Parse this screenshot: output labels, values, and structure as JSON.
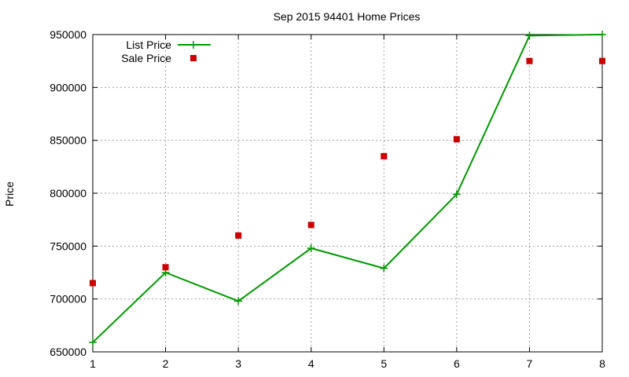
{
  "chart_data": {
    "type": "line",
    "title": "Sep 2015 94401 Home Prices",
    "xlabel": "",
    "ylabel": "Price",
    "xlim": [
      1,
      8
    ],
    "ylim": [
      650000,
      950000
    ],
    "x_ticks": [
      "1",
      "2",
      "3",
      "4",
      "5",
      "6",
      "7",
      "8"
    ],
    "y_ticks": [
      "650000",
      "700000",
      "750000",
      "800000",
      "850000",
      "900000",
      "950000"
    ],
    "x_tick_values": [
      1,
      2,
      3,
      4,
      5,
      6,
      7,
      8
    ],
    "y_tick_values": [
      650000,
      700000,
      750000,
      800000,
      850000,
      900000,
      950000
    ],
    "grid": true,
    "legend_position": "top-left",
    "x": [
      1,
      2,
      3,
      4,
      5,
      6,
      7,
      8
    ],
    "series": [
      {
        "name": "List Price",
        "style": "linespoints",
        "marker": "plus",
        "color": "#009900",
        "values": [
          659000,
          725000,
          698000,
          748000,
          729000,
          799000,
          949000,
          950000
        ]
      },
      {
        "name": "Sale Price",
        "style": "points",
        "marker": "square",
        "color": "#cc0000",
        "values": [
          715000,
          730000,
          760000,
          770000,
          835000,
          851000,
          925000,
          925000
        ]
      }
    ]
  }
}
